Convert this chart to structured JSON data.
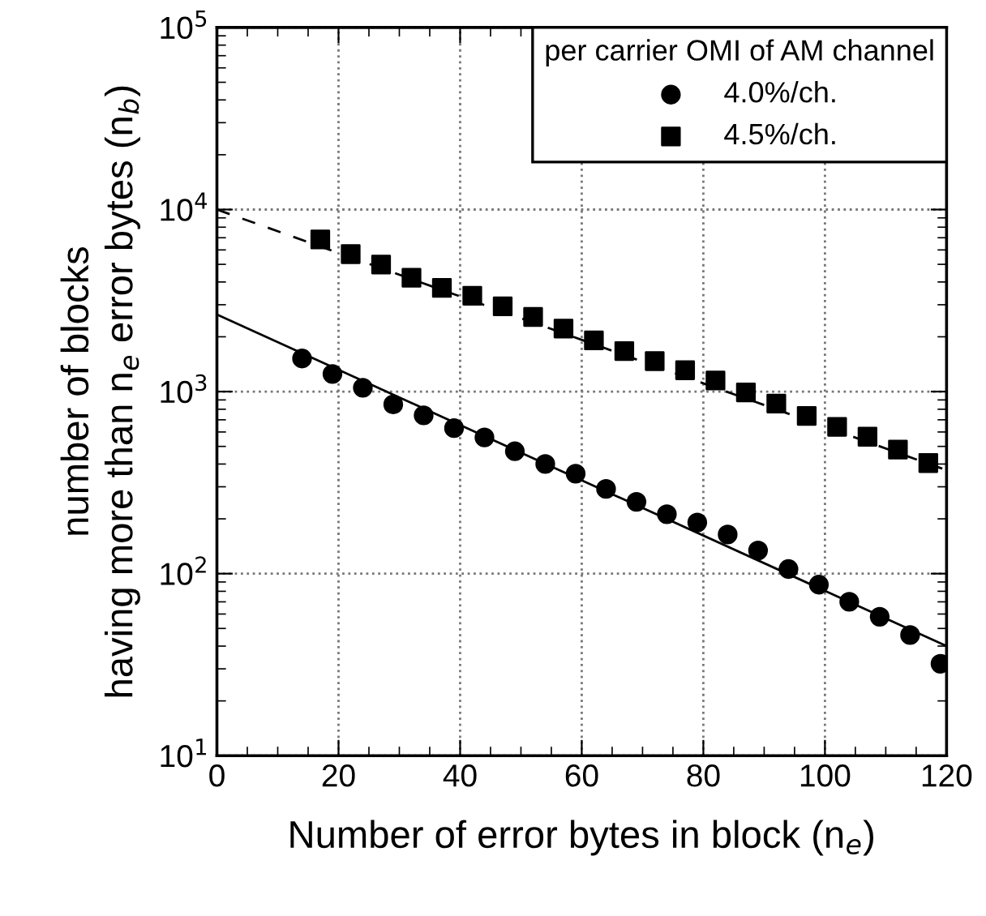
{
  "chart_data": {
    "type": "scatter",
    "xlabel": "Number of error bytes in block (n$_{e}$)",
    "ylabel": "number of blocks\nhaving more than n$_{e}$ error bytes (n$_{b}$)",
    "legend_title": "per carrier OMI of AM channel",
    "series": [
      {
        "name": "4.0%/ch.",
        "color": "#000000",
        "marker": "circle",
        "x": [
          14,
          19,
          24,
          29,
          34,
          39,
          44,
          49,
          54,
          59,
          64,
          69,
          74,
          79,
          84,
          89,
          94,
          99,
          104,
          109,
          114,
          119
        ],
        "values": [
          1520,
          1250,
          1050,
          850,
          740,
          630,
          560,
          470,
          400,
          354,
          292,
          248,
          212,
          191,
          164,
          134,
          106,
          87,
          70,
          58,
          46,
          32
        ]
      },
      {
        "name": "4.5%/ch.",
        "color": "#000000",
        "marker": "square",
        "x": [
          17,
          22,
          27,
          32,
          37,
          42,
          47,
          52,
          57,
          62,
          67,
          72,
          77,
          82,
          87,
          92,
          97,
          102,
          107,
          112,
          117
        ],
        "values": [
          6850,
          5690,
          4990,
          4220,
          3710,
          3360,
          2940,
          2570,
          2220,
          1910,
          1670,
          1470,
          1310,
          1150,
          990,
          860,
          735,
          640,
          565,
          480,
          405
        ]
      },
      {
        "type": "line",
        "color": "#000000",
        "line_style": "solid",
        "x": [
          0,
          120
        ],
        "values": [
          2650,
          40
        ]
      },
      {
        "type": "line",
        "color": "#000000",
        "line_style": "dashed",
        "x": [
          0,
          120
        ],
        "values": [
          10000,
          370
        ]
      }
    ],
    "log": "y",
    "xlim": [
      0,
      120
    ],
    "xticks": [
      0,
      20,
      40,
      60,
      80,
      100,
      120
    ],
    "ylim": [
      10,
      100000
    ],
    "yticks": [
      {
        "value": 10,
        "label": "10$^{1}$"
      },
      {
        "value": 100,
        "label": "10$^{2}$"
      },
      {
        "value": 1000,
        "label": "10$^{3}$"
      },
      {
        "value": 10000,
        "label": "10$^{4}$"
      },
      {
        "value": 100000,
        "label": "10$^{5}$"
      }
    ],
    "grid": true,
    "legend": "top right"
  }
}
